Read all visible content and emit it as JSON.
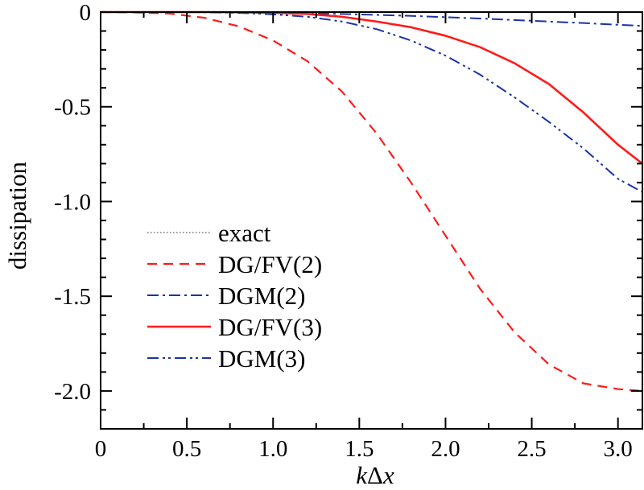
{
  "chart_data": {
    "type": "line",
    "title": "",
    "xlabel": "kΔx",
    "xlabel_parts": {
      "k": "k",
      "delta": "Δ",
      "x": "x"
    },
    "ylabel": "dissipation",
    "xlim": [
      0,
      3.1416
    ],
    "ylim": [
      -2.2,
      0
    ],
    "xticks": [
      0,
      0.5,
      1.0,
      1.5,
      2.0,
      2.5,
      3.0
    ],
    "xtick_labels": [
      "0",
      "0.5",
      "1.0",
      "1.5",
      "2.0",
      "2.5",
      "3.0"
    ],
    "yticks": [
      0,
      -0.5,
      -1.0,
      -1.5,
      -2.0
    ],
    "ytick_labels": [
      "0",
      "-0.5",
      "-1.0",
      "-1.5",
      "-2.0"
    ],
    "grid": false,
    "legend_position": "center-left",
    "x": [
      0,
      0.2,
      0.4,
      0.6,
      0.8,
      1.0,
      1.2,
      1.4,
      1.6,
      1.8,
      2.0,
      2.2,
      2.4,
      2.6,
      2.8,
      3.0,
      3.1416
    ],
    "series": [
      {
        "name": "exact",
        "color": "#555555",
        "style": "dotted",
        "values": [
          0,
          0,
          0,
          0,
          0,
          0,
          0,
          0,
          0,
          0,
          0,
          0,
          0,
          0,
          0,
          0,
          0
        ]
      },
      {
        "name": "DG/FV(2)",
        "color": "#ff1a1a",
        "style": "dashed",
        "values": [
          0,
          -0.002,
          -0.008,
          -0.03,
          -0.075,
          -0.15,
          -0.26,
          -0.42,
          -0.64,
          -0.9,
          -1.18,
          -1.46,
          -1.69,
          -1.86,
          -1.96,
          -1.99,
          -2.0
        ]
      },
      {
        "name": "DGM(2)",
        "color": "#1a33a6",
        "style": "dashdot",
        "values": [
          0,
          0,
          0,
          -0.001,
          -0.002,
          -0.004,
          -0.007,
          -0.01,
          -0.015,
          -0.02,
          -0.027,
          -0.034,
          -0.042,
          -0.05,
          -0.058,
          -0.067,
          -0.073
        ]
      },
      {
        "name": "DG/FV(3)",
        "color": "#ff1a1a",
        "style": "solid",
        "values": [
          0,
          0,
          0,
          0,
          -0.001,
          -0.004,
          -0.01,
          -0.025,
          -0.05,
          -0.08,
          -0.125,
          -0.185,
          -0.27,
          -0.38,
          -0.53,
          -0.7,
          -0.8
        ]
      },
      {
        "name": "DGM(3)",
        "color": "#1a33a6",
        "style": "dashdotdot",
        "values": [
          0,
          0,
          0,
          -0.001,
          -0.004,
          -0.012,
          -0.025,
          -0.05,
          -0.09,
          -0.15,
          -0.23,
          -0.33,
          -0.45,
          -0.58,
          -0.72,
          -0.88,
          -0.95
        ]
      }
    ]
  }
}
